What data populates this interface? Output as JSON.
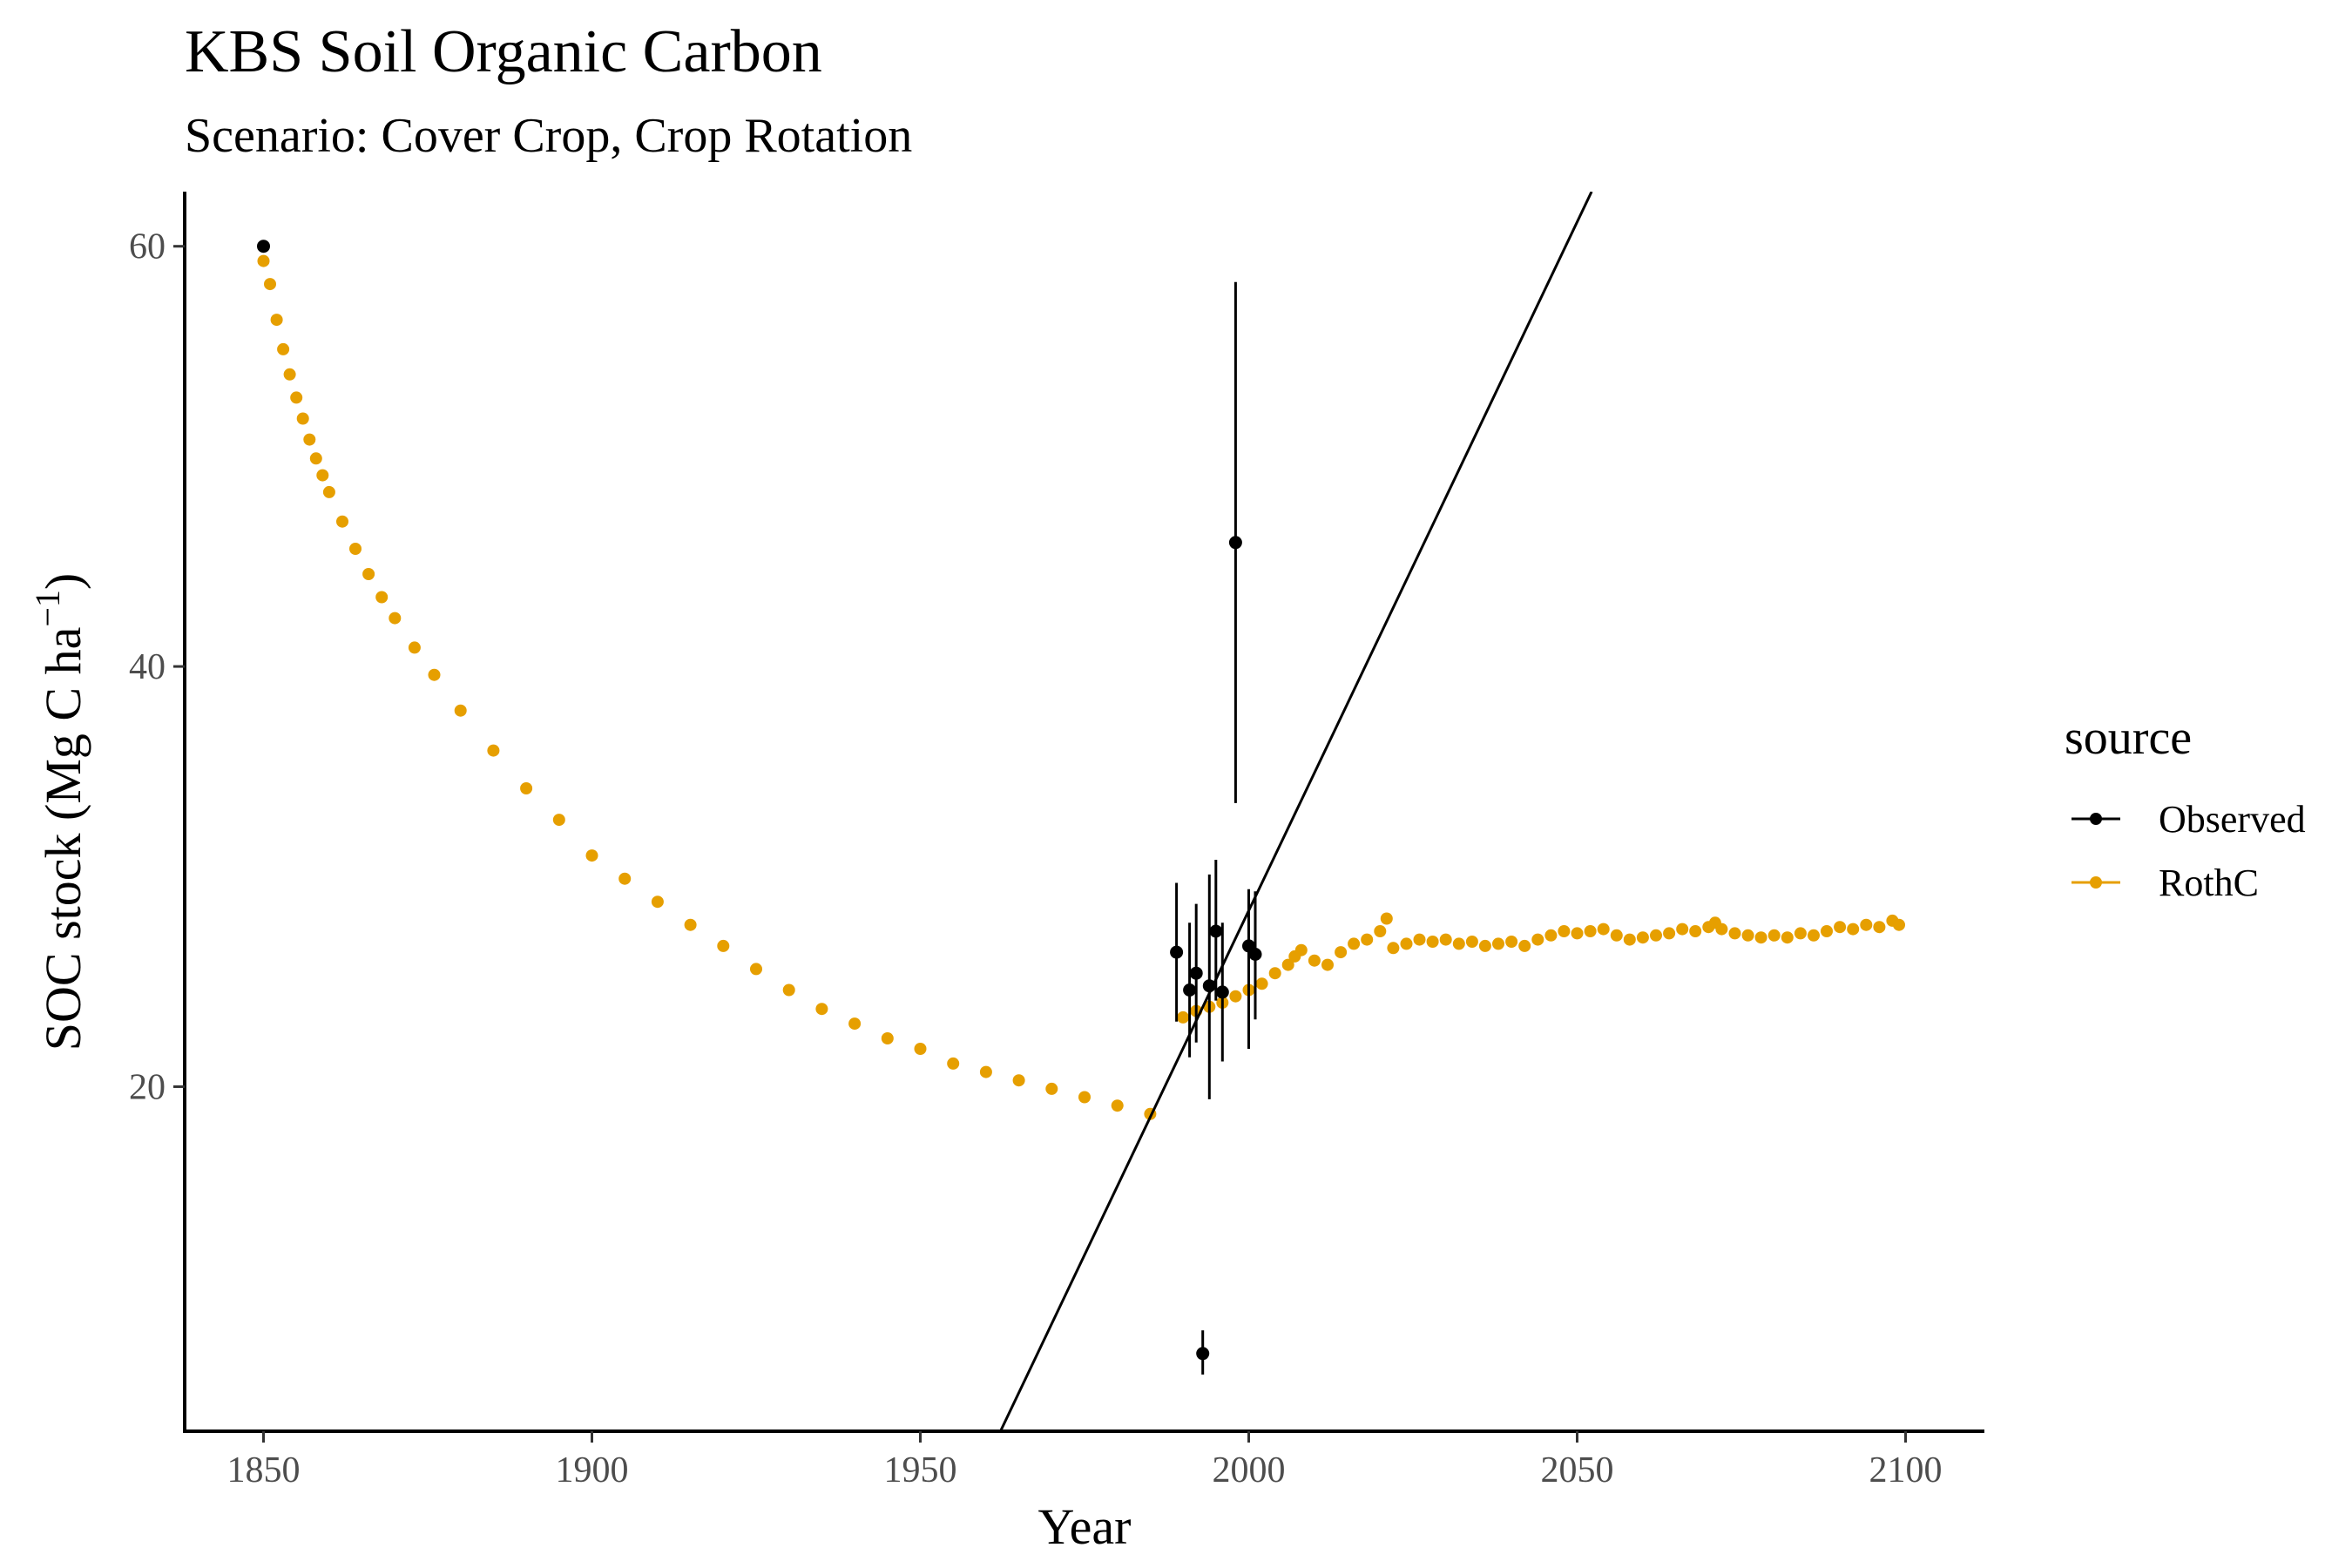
{
  "chart_data": {
    "type": "scatter",
    "title": "KBS Soil Organic Carbon",
    "subtitle": "Scenario: Cover Crop, Crop Rotation",
    "xlabel": "Year",
    "ylabel": "SOC stock (Mg C ha",
    "ylabel_superscript": "−1",
    "ylabel_close": ")",
    "xlim": [
      1838,
      2112
    ],
    "ylim": [
      3.6,
      62.6
    ],
    "xticks": [
      1850,
      1900,
      1950,
      2000,
      2050,
      2100
    ],
    "yticks": [
      20,
      40,
      60
    ],
    "grid": false,
    "legend": {
      "title": "source",
      "position": "right",
      "items": [
        {
          "label": "Observed",
          "color": "#000000"
        },
        {
          "label": "RothC",
          "color": "#E69F00"
        }
      ]
    },
    "series": [
      {
        "name": "Observed",
        "color": "#000000",
        "x": [
          1850,
          1989,
          1991,
          1992,
          1993,
          1994,
          1995,
          1996,
          1998,
          2000,
          2001
        ],
        "y": [
          60.0,
          26.4,
          24.6,
          25.4,
          7.3,
          24.8,
          27.4,
          24.5,
          45.9,
          26.7,
          26.3
        ],
        "err_low": [
          null,
          23.1,
          21.4,
          22.1,
          6.3,
          19.4,
          24.1,
          21.2,
          33.5,
          21.8,
          23.2
        ],
        "err_high": [
          null,
          29.7,
          27.8,
          28.7,
          8.4,
          30.1,
          30.8,
          27.8,
          58.3,
          29.4,
          29.3
        ]
      },
      {
        "name": "RothC",
        "color": "#E69F00",
        "x": [
          1850,
          1851,
          1852,
          1853,
          1854,
          1855,
          1856,
          1857,
          1858,
          1859,
          1860,
          1862,
          1864,
          1866,
          1868,
          1870,
          1873,
          1876,
          1880,
          1885,
          1890,
          1895,
          1900,
          1905,
          1910,
          1915,
          1920,
          1925,
          1930,
          1935,
          1940,
          1945,
          1950,
          1955,
          1960,
          1965,
          1970,
          1975,
          1980,
          1985,
          1990,
          1992,
          1994,
          1996,
          1998,
          2000,
          2002,
          2004,
          2006,
          2007,
          2008,
          2010,
          2012,
          2014,
          2016,
          2018,
          2020,
          2021,
          2022,
          2024,
          2026,
          2028,
          2030,
          2032,
          2034,
          2036,
          2038,
          2040,
          2042,
          2044,
          2046,
          2048,
          2050,
          2052,
          2054,
          2056,
          2058,
          2060,
          2062,
          2064,
          2066,
          2068,
          2070,
          2071,
          2072,
          2074,
          2076,
          2078,
          2080,
          2082,
          2084,
          2086,
          2088,
          2090,
          2092,
          2094,
          2096,
          2098,
          2099
        ],
        "y": [
          59.3,
          58.2,
          56.5,
          55.1,
          53.9,
          52.8,
          51.8,
          50.8,
          49.9,
          49.1,
          48.3,
          46.9,
          45.6,
          44.4,
          43.3,
          42.3,
          40.9,
          39.6,
          37.9,
          36.0,
          34.2,
          32.7,
          31.0,
          29.9,
          28.8,
          27.7,
          26.7,
          25.6,
          24.6,
          23.7,
          23.0,
          22.3,
          21.8,
          21.1,
          20.7,
          20.3,
          19.9,
          19.5,
          19.1,
          18.7,
          23.3,
          23.6,
          23.8,
          24.0,
          24.3,
          24.6,
          24.9,
          25.4,
          25.8,
          26.2,
          26.5,
          26.0,
          25.8,
          26.4,
          26.8,
          27.0,
          27.4,
          28.0,
          26.6,
          26.8,
          27.0,
          26.9,
          27.0,
          26.8,
          26.9,
          26.7,
          26.8,
          26.9,
          26.7,
          27.0,
          27.2,
          27.4,
          27.3,
          27.4,
          27.5,
          27.2,
          27.0,
          27.1,
          27.2,
          27.3,
          27.5,
          27.4,
          27.6,
          27.8,
          27.5,
          27.3,
          27.2,
          27.1,
          27.2,
          27.1,
          27.3,
          27.2,
          27.4,
          27.6,
          27.5,
          27.7,
          27.6,
          27.9,
          27.7
        ]
      }
    ],
    "reference_line": {
      "color": "#000000",
      "points": [
        [
          1962.2,
          3.6
        ],
        [
          2052.2,
          62.6
        ]
      ]
    }
  }
}
